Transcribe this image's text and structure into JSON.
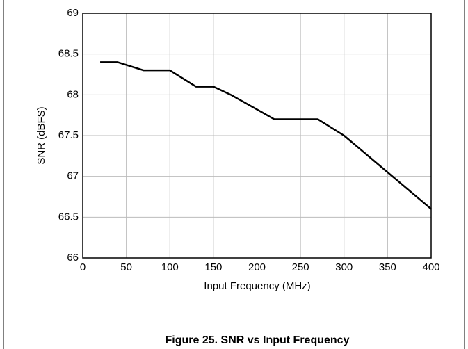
{
  "chart_data": {
    "type": "line",
    "title": "Figure 25. SNR vs Input Frequency",
    "x_label": "Input Frequency (MHz)",
    "y_label": "SNR (dBFS)",
    "x": [
      20,
      40,
      70,
      100,
      130,
      150,
      170,
      220,
      270,
      300,
      400
    ],
    "series": [
      {
        "color": "#000000",
        "values": [
          68.4,
          68.4,
          68.3,
          68.3,
          68.1,
          68.1,
          68.0,
          67.7,
          67.7,
          67.5,
          66.6
        ]
      }
    ],
    "xlim": [
      0,
      400
    ],
    "xticks": [
      0,
      50,
      100,
      150,
      200,
      250,
      300,
      350,
      400
    ],
    "ylim": [
      66,
      69
    ],
    "yticks": [
      66,
      66.5,
      67,
      67.5,
      68,
      68.5,
      69
    ],
    "grid": true
  }
}
